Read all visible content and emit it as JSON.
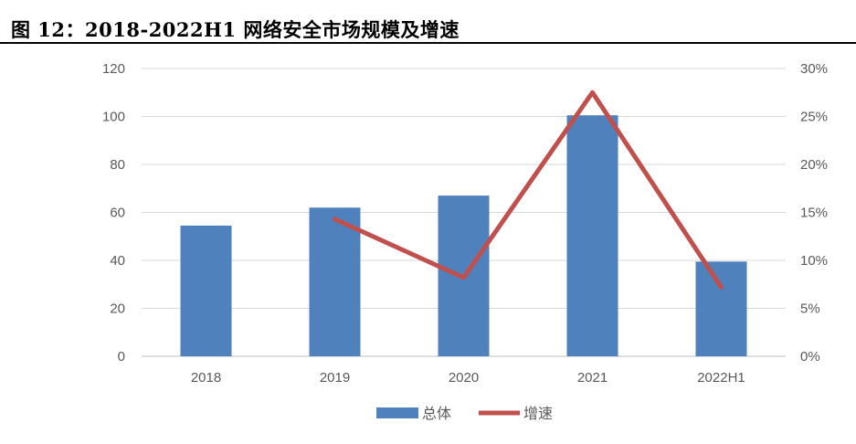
{
  "figure": {
    "title": "图 12：2018-2022H1 网络安全市场规模及增速"
  },
  "colors": {
    "bar": "#4f81bd",
    "line": "#c0504d",
    "grid": "#d9d9d9",
    "tick_text": "#595959"
  },
  "chart_data": {
    "type": "bar+line",
    "categories": [
      "2018",
      "2019",
      "2020",
      "2021",
      "2022H1"
    ],
    "series": [
      {
        "name": "总体",
        "type": "bar",
        "axis": "left",
        "values": [
          54.5,
          62,
          67,
          100.5,
          39.5
        ]
      },
      {
        "name": "增速",
        "type": "line",
        "axis": "right",
        "values": [
          null,
          0.143,
          0.082,
          0.275,
          0.072
        ]
      }
    ],
    "y_left": {
      "min": 0,
      "max": 120,
      "ticks": [
        "0",
        "20",
        "40",
        "60",
        "80",
        "100",
        "120"
      ]
    },
    "y_right": {
      "min": 0,
      "max": 0.3,
      "ticks": [
        "0%",
        "5%",
        "10%",
        "15%",
        "20%",
        "25%",
        "30%"
      ]
    },
    "grid": true,
    "legend_position": "bottom"
  }
}
